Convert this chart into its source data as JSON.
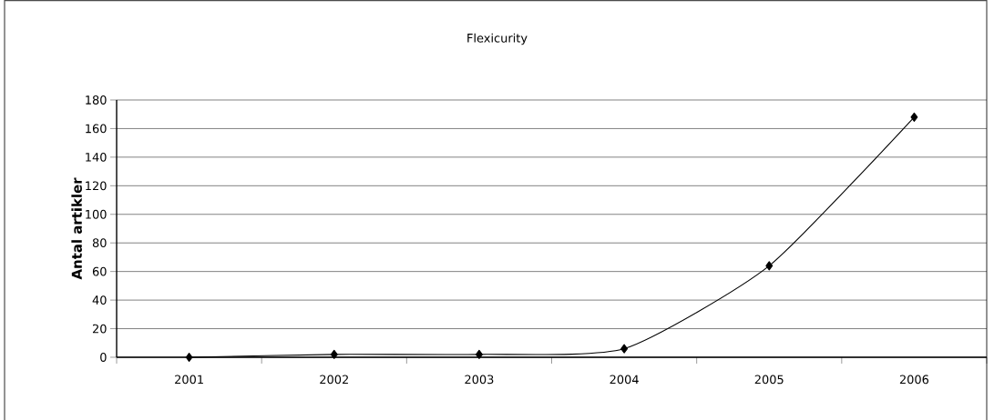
{
  "chart_data": {
    "type": "line",
    "title": "Flexicurity",
    "ylabel": "Antal artikler",
    "categories": [
      "2001",
      "2002",
      "2003",
      "2004",
      "2005",
      "2006"
    ],
    "series": [
      {
        "color": "#000000",
        "values": [
          0,
          2,
          2,
          6,
          64,
          168
        ]
      }
    ],
    "ylim": [
      0,
      180
    ],
    "yticks": [
      0,
      20,
      40,
      60,
      80,
      100,
      120,
      140,
      160,
      180
    ],
    "grid": "y",
    "marker": "diamond",
    "line_style": "solid",
    "legend": false
  }
}
